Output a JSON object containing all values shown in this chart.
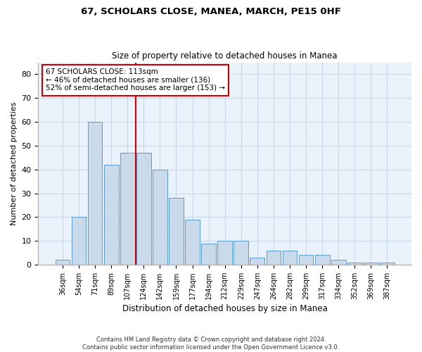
{
  "title": "67, SCHOLARS CLOSE, MANEA, MARCH, PE15 0HF",
  "subtitle": "Size of property relative to detached houses in Manea",
  "xlabel": "Distribution of detached houses by size in Manea",
  "ylabel": "Number of detached properties",
  "categories": [
    "36sqm",
    "54sqm",
    "71sqm",
    "89sqm",
    "107sqm",
    "124sqm",
    "142sqm",
    "159sqm",
    "177sqm",
    "194sqm",
    "212sqm",
    "229sqm",
    "247sqm",
    "264sqm",
    "282sqm",
    "299sqm",
    "317sqm",
    "334sqm",
    "352sqm",
    "369sqm",
    "387sqm"
  ],
  "values": [
    2,
    20,
    60,
    42,
    47,
    47,
    40,
    28,
    19,
    9,
    10,
    10,
    3,
    6,
    6,
    4,
    4,
    2,
    1,
    1,
    1
  ],
  "bar_color": "#c9daea",
  "bar_edge_color": "#5b9bd5",
  "vline_color": "#cc0000",
  "annotation_text": "67 SCHOLARS CLOSE: 113sqm\n← 46% of detached houses are smaller (136)\n52% of semi-detached houses are larger (153) →",
  "annotation_box_color": "#ffffff",
  "annotation_box_edge": "#cc0000",
  "ylim": [
    0,
    85
  ],
  "yticks": [
    0,
    10,
    20,
    30,
    40,
    50,
    60,
    70,
    80
  ],
  "footer": "Contains HM Land Registry data © Crown copyright and database right 2024.\nContains public sector information licensed under the Open Government Licence v3.0.",
  "grid_color": "#c8d8e8",
  "background_color": "#eaf2fb",
  "figsize": [
    6.0,
    5.0
  ],
  "dpi": 100
}
